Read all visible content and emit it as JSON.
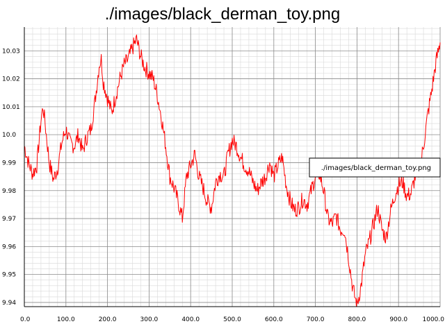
{
  "chart_data": {
    "type": "line",
    "title": "./images/black_derman_toy.png",
    "xlabel": "",
    "ylabel": "",
    "xlim": [
      0,
      1000
    ],
    "ylim": [
      9.9385,
      10.0385
    ],
    "grid": true,
    "legend_position": "right",
    "x_ticks": [
      0,
      100,
      200,
      300,
      400,
      500,
      600,
      700,
      800,
      900,
      1000
    ],
    "x_tick_labels": [
      "0.0",
      "100.0",
      "200.0",
      "300.0",
      "400.0",
      "500.0",
      "600.0",
      "700.0",
      "800.0",
      "900.0",
      "1000.0"
    ],
    "y_ticks": [
      9.94,
      9.95,
      9.96,
      9.97,
      9.98,
      9.99,
      10.0,
      10.01,
      10.02,
      10.03
    ],
    "y_tick_labels": [
      "9.94",
      "9.95",
      "9.96",
      "9.97",
      "9.98",
      "9.99",
      "10.0",
      "10.01",
      "10.02",
      "10.03"
    ],
    "series": [
      {
        "name": "./images/black_derman_toy.png",
        "color": "#ff0000",
        "x": [
          0,
          10,
          20,
          30,
          40,
          45,
          50,
          60,
          70,
          80,
          90,
          100,
          110,
          120,
          130,
          140,
          150,
          160,
          170,
          180,
          185,
          190,
          200,
          210,
          220,
          230,
          240,
          250,
          260,
          270,
          280,
          290,
          300,
          310,
          320,
          330,
          340,
          350,
          360,
          370,
          380,
          390,
          400,
          410,
          420,
          430,
          440,
          450,
          460,
          470,
          480,
          490,
          500,
          510,
          520,
          530,
          540,
          550,
          560,
          570,
          580,
          590,
          600,
          610,
          620,
          630,
          640,
          650,
          660,
          670,
          680,
          690,
          700,
          710,
          720,
          730,
          740,
          750,
          760,
          770,
          780,
          790,
          800,
          810,
          820,
          830,
          840,
          850,
          860,
          870,
          880,
          890,
          900,
          910,
          920,
          930,
          940,
          950,
          960,
          970,
          980,
          990,
          1000
        ],
        "values": [
          9.996,
          9.99,
          9.986,
          9.989,
          10.005,
          10.01,
          10.004,
          9.99,
          9.984,
          9.988,
          9.997,
          10.002,
          9.997,
          9.996,
          10.0,
          9.994,
          9.999,
          10.002,
          10.012,
          10.025,
          10.027,
          10.019,
          10.013,
          10.008,
          10.014,
          10.02,
          10.025,
          10.027,
          10.031,
          10.034,
          10.028,
          10.024,
          10.022,
          10.02,
          10.014,
          10.006,
          9.996,
          9.985,
          9.981,
          9.976,
          9.97,
          9.985,
          9.989,
          9.993,
          9.985,
          9.981,
          9.976,
          9.974,
          9.983,
          9.986,
          9.985,
          9.993,
          9.998,
          9.996,
          9.992,
          9.989,
          9.987,
          9.983,
          9.98,
          9.983,
          9.985,
          9.99,
          9.985,
          9.989,
          9.992,
          9.982,
          9.976,
          9.973,
          9.974,
          9.977,
          9.975,
          9.98,
          9.985,
          9.986,
          9.98,
          9.97,
          9.968,
          9.971,
          9.966,
          9.966,
          9.956,
          9.945,
          9.939,
          9.946,
          9.957,
          9.962,
          9.968,
          9.974,
          9.966,
          9.963,
          9.972,
          9.978,
          9.982,
          9.983,
          9.978,
          9.979,
          9.985,
          9.987,
          9.996,
          10.007,
          10.016,
          10.026,
          10.033
        ]
      }
    ]
  }
}
